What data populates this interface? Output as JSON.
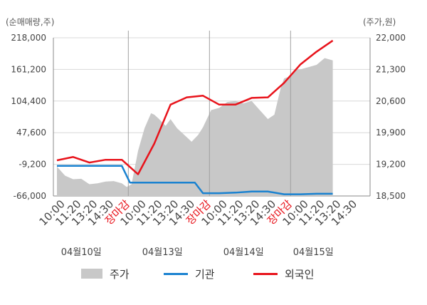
{
  "units": {
    "left": "(순매매량,주)",
    "right": "(주가,원)"
  },
  "legend": {
    "price": "주가",
    "institution": "기관",
    "foreign": "외국인"
  },
  "colors": {
    "price_area": "#c8c8c8",
    "institution": "#1a82d0",
    "foreign": "#e8131b",
    "grid": "#d8d8d8",
    "axis": "#888888",
    "closing_label": "#e8131b"
  },
  "chart_data": {
    "type": "line",
    "left_axis": {
      "ticks": [
        "218,000",
        "161,200",
        "104,400",
        "47,600",
        "-9,200",
        "-66,000"
      ],
      "min": -66000,
      "max": 218000
    },
    "right_axis": {
      "ticks": [
        "22,000",
        "21,300",
        "20,600",
        "19,900",
        "19,200",
        "18,500"
      ],
      "min": 18500,
      "max": 22000
    },
    "x_labels": [
      "10:00",
      "11:20",
      "13:20",
      "14:30",
      "장마감",
      "10:00",
      "11:20",
      "13:20",
      "14:30",
      "장마감",
      "10:00",
      "11:20",
      "13:20",
      "14:30",
      "장마감",
      "10:00",
      "11:20",
      "13:20",
      "14:30"
    ],
    "closing_label": "장마감",
    "dates": [
      "04월10일",
      "04월13일",
      "04월14일",
      "04월15일"
    ],
    "series": [
      {
        "name": "외국인",
        "axis": "left",
        "x": [
          0,
          1,
          2,
          3,
          4,
          5,
          6,
          7,
          8,
          9,
          10,
          11,
          12,
          13,
          14,
          15,
          16,
          17
        ],
        "values": [
          -2000,
          4000,
          -6000,
          -1000,
          -1000,
          -27000,
          28000,
          98000,
          111000,
          114000,
          98000,
          98000,
          110000,
          111000,
          137000,
          170000,
          193000,
          213000
        ]
      },
      {
        "name": "기관",
        "axis": "left",
        "x": [
          0,
          1,
          2,
          3,
          3.5,
          4,
          4.5,
          5,
          6,
          7,
          8,
          8.5,
          9,
          10,
          11,
          12,
          13,
          14,
          15,
          16,
          17
        ],
        "values": [
          -12000,
          -12000,
          -12000,
          -12000,
          -12000,
          -12000,
          -42000,
          -42000,
          -42000,
          -42000,
          -42000,
          -42000,
          -61000,
          -61000,
          -60000,
          -58000,
          -58000,
          -63000,
          -63000,
          -62000,
          -62000
        ]
      },
      {
        "name": "주가",
        "axis": "right",
        "x": [
          0,
          0.5,
          1,
          1.5,
          2,
          2.5,
          3,
          3.5,
          4,
          4.3,
          4.6,
          5,
          5.4,
          5.8,
          6,
          6.3,
          6.7,
          7,
          7.4,
          8,
          8.3,
          8.7,
          9,
          9.5,
          10,
          10.5,
          11,
          11.5,
          12,
          12.5,
          13,
          13.4,
          13.8,
          14,
          14.4,
          14.8,
          15,
          15.5,
          16,
          16.5,
          17
        ],
        "values": [
          19150,
          18950,
          18870,
          18880,
          18760,
          18780,
          18820,
          18830,
          18780,
          18700,
          18760,
          19500,
          20000,
          20330,
          20300,
          20200,
          20050,
          20200,
          20000,
          19800,
          19700,
          19850,
          20020,
          20400,
          20450,
          20580,
          20600,
          20550,
          20600,
          20400,
          20200,
          20300,
          20900,
          21100,
          21150,
          21300,
          21300,
          21350,
          21400,
          21550,
          21500
        ]
      }
    ]
  }
}
